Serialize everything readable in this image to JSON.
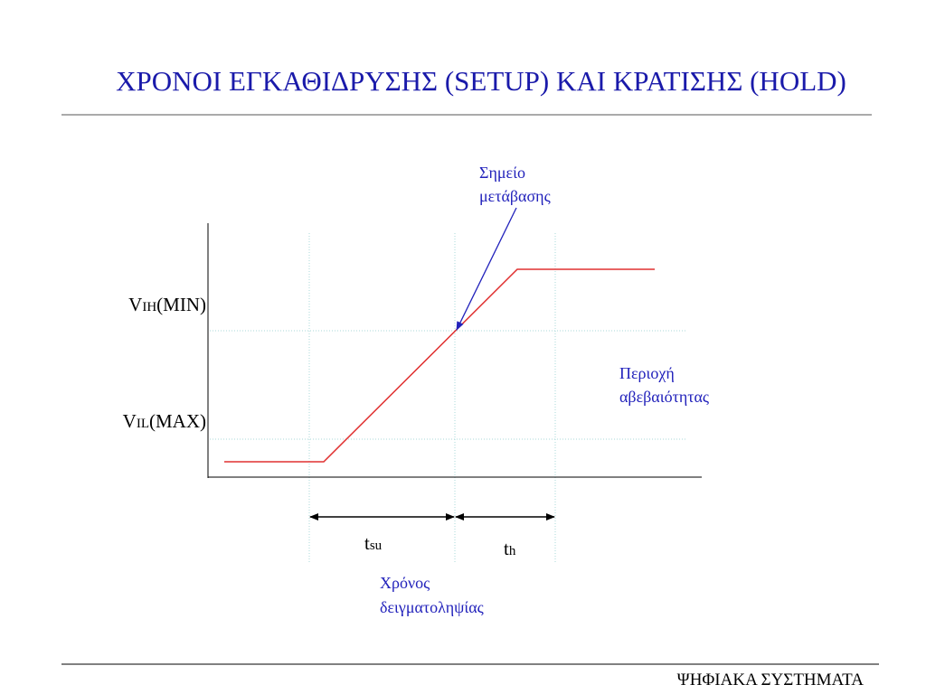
{
  "header": {
    "title": "ΧΡΟΝΟΙ ΕΓΚΑΘΙΔΡΥΣΗΣ (SETUP) ΚΑΙ ΚΡΑΤΙΣΗΣ (HOLD)"
  },
  "diagram": {
    "transition_label": [
      "Σημείο",
      "μετάβασης"
    ],
    "vih_label": {
      "main": "V",
      "sub": "IH",
      "rest": "(MIN)"
    },
    "vil_label": {
      "main": "V",
      "sub": "IL",
      "rest": "(MAX)"
    },
    "uncertainty_label": [
      "Περιοχή",
      "αβεβαιότητας"
    ],
    "tsu_label": {
      "main": "t",
      "sub": "su"
    },
    "th_label": {
      "main": "t",
      "sub": "h"
    },
    "sampling_label": [
      "Χρόνος",
      "δειγματοληψίας"
    ]
  },
  "footer": {
    "text": "ΨΗΦΙΑΚΑ ΣΥΣΤΗΜΑΤΑ"
  }
}
